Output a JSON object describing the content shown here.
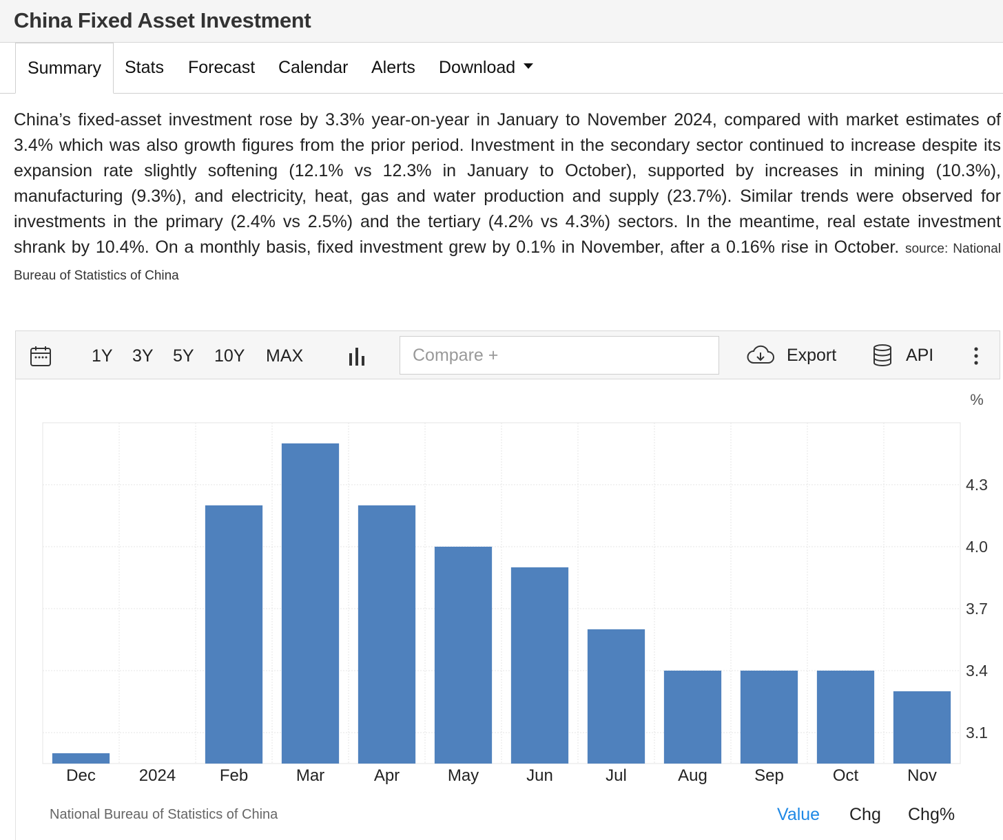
{
  "page": {
    "title": "China Fixed Asset Investment"
  },
  "tabs": [
    {
      "label": "Summary",
      "active": true
    },
    {
      "label": "Stats"
    },
    {
      "label": "Forecast"
    },
    {
      "label": "Calendar"
    },
    {
      "label": "Alerts"
    },
    {
      "label": "Download",
      "dropdown": true
    }
  ],
  "summary": {
    "text": "China’s fixed-asset investment rose by 3.3% year-on-year in January to November 2024, compared with market estimates of 3.4% which was also growth figures from the prior period. Investment in the secondary sector continued to increase despite its expansion rate slightly softening (12.1% vs 12.3% in January to October), supported by increases in mining (10.3%), manufacturing (9.3%), and electricity, heat, gas and water production and supply (23.7%). Similar trends were observed for investments in the primary (2.4% vs 2.5%) and the tertiary (4.2% vs 4.3%) sectors. In the meantime, real estate investment shrank by 10.4%. On a monthly basis, fixed investment grew by 0.1% in November, after a 0.16% rise in October.",
    "source": "source: National Bureau of Statistics of China"
  },
  "toolbar": {
    "calendar_icon": "calendar-icon",
    "ranges": [
      "1Y",
      "3Y",
      "5Y",
      "10Y",
      "MAX"
    ],
    "chart_type_icon": "bar-chart-icon",
    "compare_placeholder": "Compare +",
    "export_icon": "cloud-download-icon",
    "export_label": "Export",
    "api_icon": "database-icon",
    "api_label": "API",
    "more_icon": "more-vertical-icon"
  },
  "chart_data": {
    "type": "bar",
    "categories": [
      "Dec",
      "2024",
      "Feb",
      "Mar",
      "Apr",
      "May",
      "Jun",
      "Jul",
      "Aug",
      "Sep",
      "Oct",
      "Nov"
    ],
    "values": [
      3.0,
      null,
      4.2,
      4.5,
      4.2,
      4.0,
      3.9,
      3.6,
      3.4,
      3.4,
      3.4,
      3.3
    ],
    "unit": "%",
    "y_ticks": [
      "3.1",
      "3.4",
      "3.7",
      "4.0",
      "4.3"
    ],
    "ylim": [
      2.95,
      4.6
    ],
    "y_axis_side": "right",
    "grid": true,
    "bar_color": "#4f81bd"
  },
  "footer": {
    "source": "National Bureau of Statistics of China",
    "buttons": [
      {
        "label": "Value",
        "active": true
      },
      {
        "label": "Chg"
      },
      {
        "label": "Chg%"
      }
    ],
    "active_color": "#1e88e5"
  }
}
